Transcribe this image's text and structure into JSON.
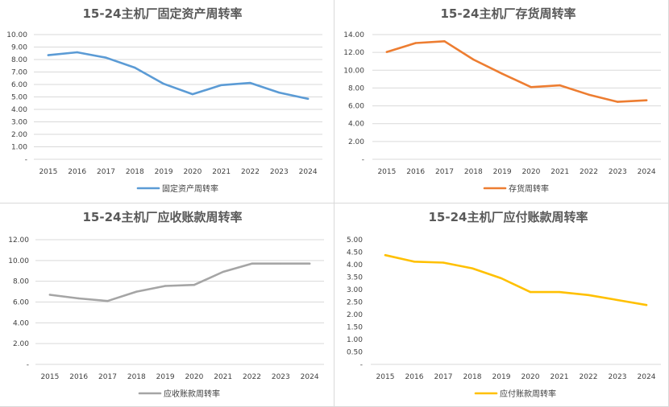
{
  "chart_data": [
    {
      "type": "line",
      "title": "15-24主机厂固定资产周转率",
      "categories": [
        "2015",
        "2016",
        "2017",
        "2018",
        "2019",
        "2020",
        "2021",
        "2022",
        "2023",
        "2024"
      ],
      "series": [
        {
          "name": "固定资产周转率",
          "values": [
            8.35,
            8.58,
            8.15,
            7.35,
            6.05,
            5.22,
            5.95,
            6.12,
            5.35,
            4.85
          ],
          "color": "#5B9BD5"
        }
      ],
      "ylim": [
        0,
        10
      ],
      "yticks": [
        0,
        1,
        2,
        3,
        4,
        5,
        6,
        7,
        8,
        9,
        10
      ],
      "ytick_labels": [
        "-",
        "1.00",
        "2.00",
        "3.00",
        "4.00",
        "5.00",
        "6.00",
        "7.00",
        "8.00",
        "9.00",
        "10.00"
      ],
      "grid": true,
      "legend": "bottom"
    },
    {
      "type": "line",
      "title": "15-24主机厂存货周转率",
      "categories": [
        "2015",
        "2016",
        "2017",
        "2018",
        "2019",
        "2020",
        "2021",
        "2022",
        "2023",
        "2024"
      ],
      "series": [
        {
          "name": "存货周转率",
          "values": [
            12.05,
            13.05,
            13.25,
            11.2,
            9.6,
            8.1,
            8.3,
            7.25,
            6.45,
            6.62
          ],
          "color": "#ED7D31"
        }
      ],
      "ylim": [
        0,
        14
      ],
      "yticks": [
        0,
        2,
        4,
        6,
        8,
        10,
        12,
        14
      ],
      "ytick_labels": [
        "-",
        "2.00",
        "4.00",
        "6.00",
        "8.00",
        "10.00",
        "12.00",
        "14.00"
      ],
      "grid": true,
      "legend": "bottom"
    },
    {
      "type": "line",
      "title": "15-24主机厂应收账款周转率",
      "categories": [
        "2015",
        "2016",
        "2017",
        "2018",
        "2019",
        "2020",
        "2021",
        "2022",
        "2023",
        "2024"
      ],
      "series": [
        {
          "name": "应收账款周转率",
          "values": [
            6.7,
            6.35,
            6.1,
            7.0,
            7.55,
            7.65,
            8.9,
            9.7,
            9.7,
            9.7
          ],
          "color": "#A5A5A5"
        }
      ],
      "ylim": [
        0,
        12
      ],
      "yticks": [
        0,
        2,
        4,
        6,
        8,
        10,
        12
      ],
      "ytick_labels": [
        "-",
        "2.00",
        "4.00",
        "6.00",
        "8.00",
        "10.00",
        "12.00"
      ],
      "grid": true,
      "legend": "bottom"
    },
    {
      "type": "line",
      "title": "15-24主机厂应付账款周转率",
      "categories": [
        "2015",
        "2016",
        "2017",
        "2018",
        "2019",
        "2020",
        "2021",
        "2022",
        "2023",
        "2024"
      ],
      "series": [
        {
          "name": "应付账款周转率",
          "values": [
            4.38,
            4.12,
            4.08,
            3.85,
            3.45,
            2.9,
            2.9,
            2.78,
            2.58,
            2.38
          ],
          "color": "#FFC000"
        }
      ],
      "ylim": [
        0,
        5
      ],
      "yticks": [
        0,
        0.5,
        1,
        1.5,
        2,
        2.5,
        3,
        3.5,
        4,
        4.5,
        5
      ],
      "ytick_labels": [
        "-",
        "0.50",
        "1.00",
        "1.50",
        "2.00",
        "2.50",
        "3.00",
        "3.50",
        "4.00",
        "4.50",
        "5.00"
      ],
      "grid": false,
      "legend": "bottom"
    }
  ]
}
